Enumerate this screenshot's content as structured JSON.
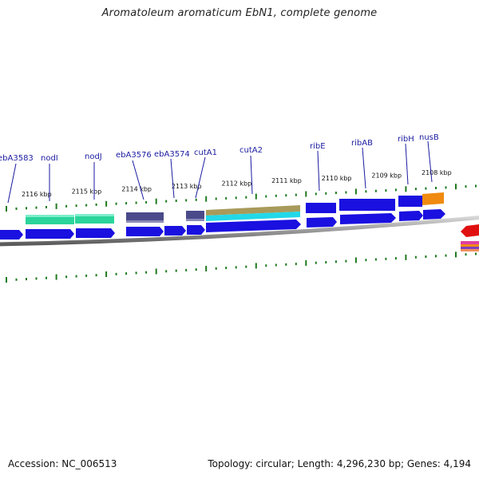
{
  "title": "Aromatoleum aromaticum EbN1, complete genome",
  "footer": {
    "accession": "Accession: NC_006513",
    "topology": "Topology: circular; Length: 4,296,230 bp; Genes: 4,194"
  },
  "colors": {
    "cds": "#1a10e0",
    "label": "#1a1aa0",
    "tick": "#1e7a1e",
    "backbone": "#8a8a8a",
    "slate_feature": "#4a4a8a",
    "teal_feature": "#2ad49a",
    "tan_feature": "#a89a5a",
    "cyan_feature": "#22d8e8",
    "orange_feature": "#f08a10",
    "red_feature": "#e01010",
    "pink_feature": "#e040a0"
  },
  "gene_labels": [
    "ebA3583",
    "nodI",
    "nodJ",
    "ebA3576",
    "ebA3574",
    "cutA1",
    "cutA2",
    "ribE",
    "ribAB",
    "ribH",
    "nusB"
  ],
  "tick_labels": [
    "2116 kbp",
    "2115 kbp",
    "2114 kbp",
    "2113 kbp",
    "2112 kbp",
    "2111 kbp",
    "2110 kbp",
    "2109 kbp",
    "2108 kbp"
  ]
}
